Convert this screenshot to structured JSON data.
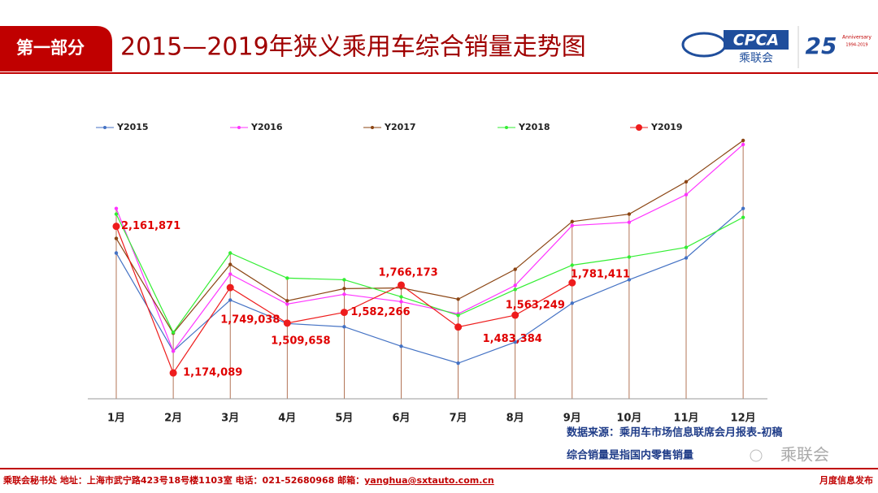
{
  "header": {
    "section": "第一部分",
    "title": "2015—2019年狭义乘用车综合销量走势图",
    "logo_cpca": "CPCA",
    "logo_name": "乘联会",
    "logo_25": "25",
    "logo_anniv": "Anniversary",
    "logo_years": "1994-2019"
  },
  "chart_data": {
    "type": "line",
    "categories": [
      "1月",
      "2月",
      "3月",
      "4月",
      "5月",
      "6月",
      "7月",
      "8月",
      "9月",
      "10月",
      "11月",
      "12月"
    ],
    "ylim": [
      1000000,
      2800000
    ],
    "legend": "top",
    "series": [
      {
        "name": "Y2015",
        "color": "#4472c4",
        "values": [
          1982000,
          1321000,
          1665000,
          1507000,
          1485000,
          1354000,
          1240000,
          1382000,
          1644000,
          1802000,
          1949000,
          2282000
        ]
      },
      {
        "name": "Y2016",
        "color": "#ff33ff",
        "values": [
          2282000,
          1321000,
          1840000,
          1638000,
          1704000,
          1654000,
          1572000,
          1764000,
          2167000,
          2189000,
          2375000,
          2713000
        ]
      },
      {
        "name": "Y2017",
        "color": "#8b4513",
        "values": [
          2080000,
          1442000,
          1905000,
          1660000,
          1742000,
          1747000,
          1671000,
          1872000,
          2194000,
          2244000,
          2462000,
          2740000
        ]
      },
      {
        "name": "Y2018",
        "color": "#33ee33",
        "values": [
          2244000,
          1447000,
          1982000,
          1813000,
          1802000,
          1687000,
          1562000,
          1736000,
          1900000,
          1955000,
          2020000,
          2222000
        ]
      },
      {
        "name": "Y2019",
        "color": "#ee1c1c",
        "values": [
          2161871,
          1174089,
          1749038,
          1509658,
          1582266,
          1766173,
          1483384,
          1563249,
          1781411,
          null,
          null,
          null
        ],
        "value_labels": [
          "2,161,871",
          "1,174,089",
          "1,749,038",
          "1,509,658",
          "1,582,266",
          "1,766,173",
          "1,483,384",
          "1,563,249",
          "1,781,411",
          null,
          null,
          null
        ]
      }
    ]
  },
  "notes": [
    "数据来源：乘用车市场信息联席会月报表-初稿",
    "综合销量是指国内零售销量"
  ],
  "watermark": "乘联会",
  "footer": {
    "contact": "乘联会秘书处   地址：上海市武宁路423号18号楼1103室  电话：021-52680968  邮箱：",
    "email": "yanghua@sxtauto.com.cn",
    "right": "月度信息发布"
  }
}
